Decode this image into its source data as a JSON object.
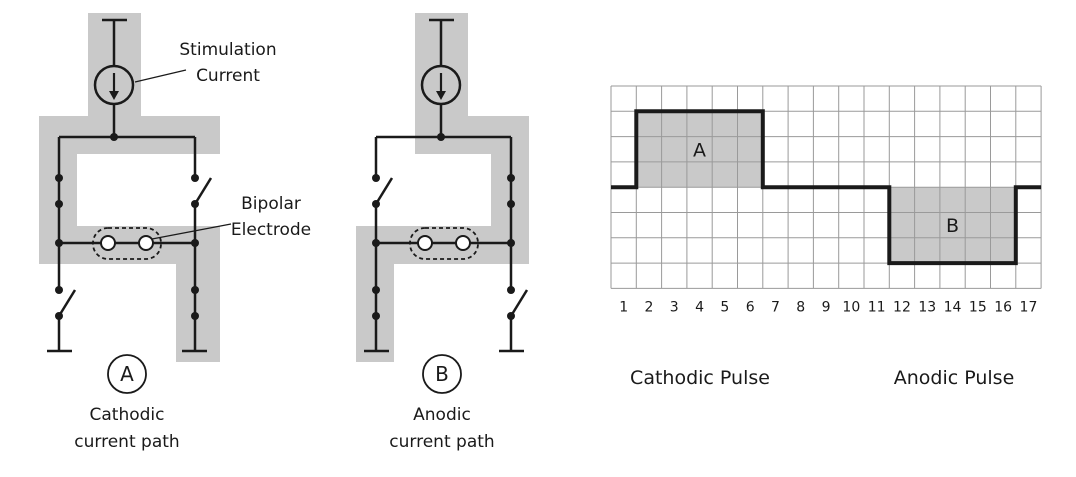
{
  "circuit_a": {
    "label_stimulation_line1": "Stimulation",
    "label_stimulation_line2": "Current",
    "label_electrode_line1": "Bipolar",
    "label_electrode_line2": "Electrode",
    "badge": "A",
    "caption_line1": "Cathodic",
    "caption_line2": "current path"
  },
  "circuit_b": {
    "badge": "B",
    "caption_line1": "Anodic",
    "caption_line2": "current path"
  },
  "colors": {
    "path_highlight": "#c9c9c9",
    "ink": "#1a1a1a",
    "grid": "#9a9a9a"
  },
  "chart_data": {
    "type": "line",
    "step": "post",
    "x_ticks": [
      "1",
      "2",
      "3",
      "4",
      "5",
      "6",
      "7",
      "8",
      "9",
      "10",
      "11",
      "12",
      "13",
      "14",
      "15",
      "16",
      "17"
    ],
    "x": [
      1,
      2,
      2,
      7,
      7,
      12,
      12,
      17,
      17,
      18
    ],
    "y": [
      0,
      0,
      3,
      3,
      0,
      0,
      -3,
      -3,
      0,
      0
    ],
    "ylim": [
      -4,
      4
    ],
    "xlim": [
      1,
      18
    ],
    "grid": true,
    "shaded_regions": [
      {
        "label": "A",
        "x_from": 2,
        "x_to": 7,
        "y_from": 0,
        "y_to": 3
      },
      {
        "label": "B",
        "x_from": 12,
        "x_to": 17,
        "y_from": -3,
        "y_to": 0
      }
    ],
    "annotations": [
      "Cathodic Pulse",
      "Anodic Pulse"
    ]
  }
}
